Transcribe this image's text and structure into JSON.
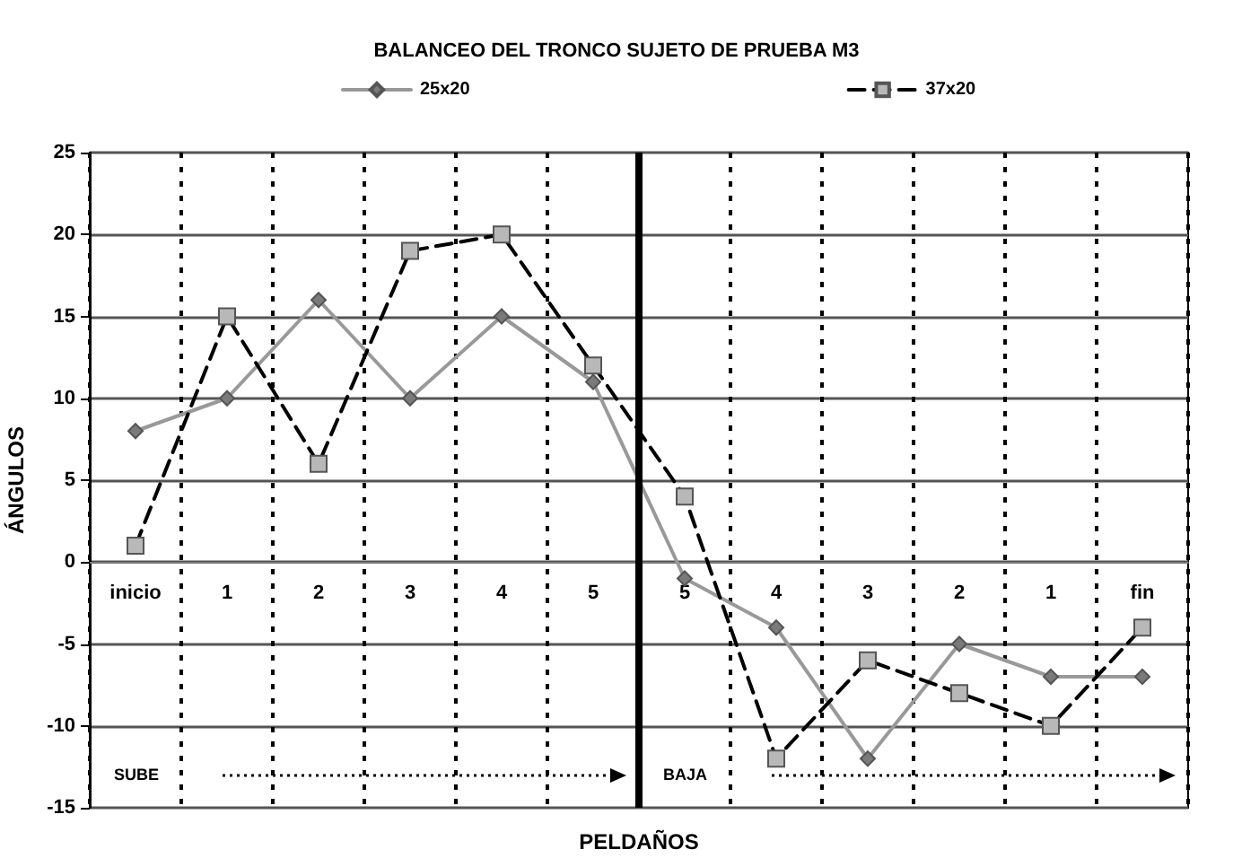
{
  "chart_data": {
    "type": "line",
    "title": "BALANCEO DEL TRONCO SUJETO DE PRUEBA M3",
    "xlabel": "PELDAÑOS",
    "ylabel": "ÁNGULOS",
    "categories": [
      "inicio",
      "1",
      "2",
      "3",
      "4",
      "5",
      "5",
      "4",
      "3",
      "2",
      "1",
      "fin"
    ],
    "series": [
      {
        "name": "25x20",
        "color": "#999999",
        "marker": "diamond",
        "line_style": "solid",
        "values": [
          8,
          10,
          16,
          10,
          15,
          11,
          -1,
          -4,
          -12,
          -5,
          -7,
          -7
        ]
      },
      {
        "name": "37x20",
        "color": "#000000",
        "marker": "square",
        "line_style": "dashed",
        "values": [
          1,
          15,
          6,
          19,
          20,
          12,
          4,
          -12,
          -6,
          -8,
          -10,
          -4
        ]
      }
    ],
    "ylim": [
      -15,
      25
    ],
    "yticks": [
      -15,
      -10,
      -5,
      0,
      5,
      10,
      15,
      20,
      25
    ],
    "grid": true,
    "legend": "top",
    "annotations": [
      "SUBE",
      "BAJA"
    ]
  }
}
